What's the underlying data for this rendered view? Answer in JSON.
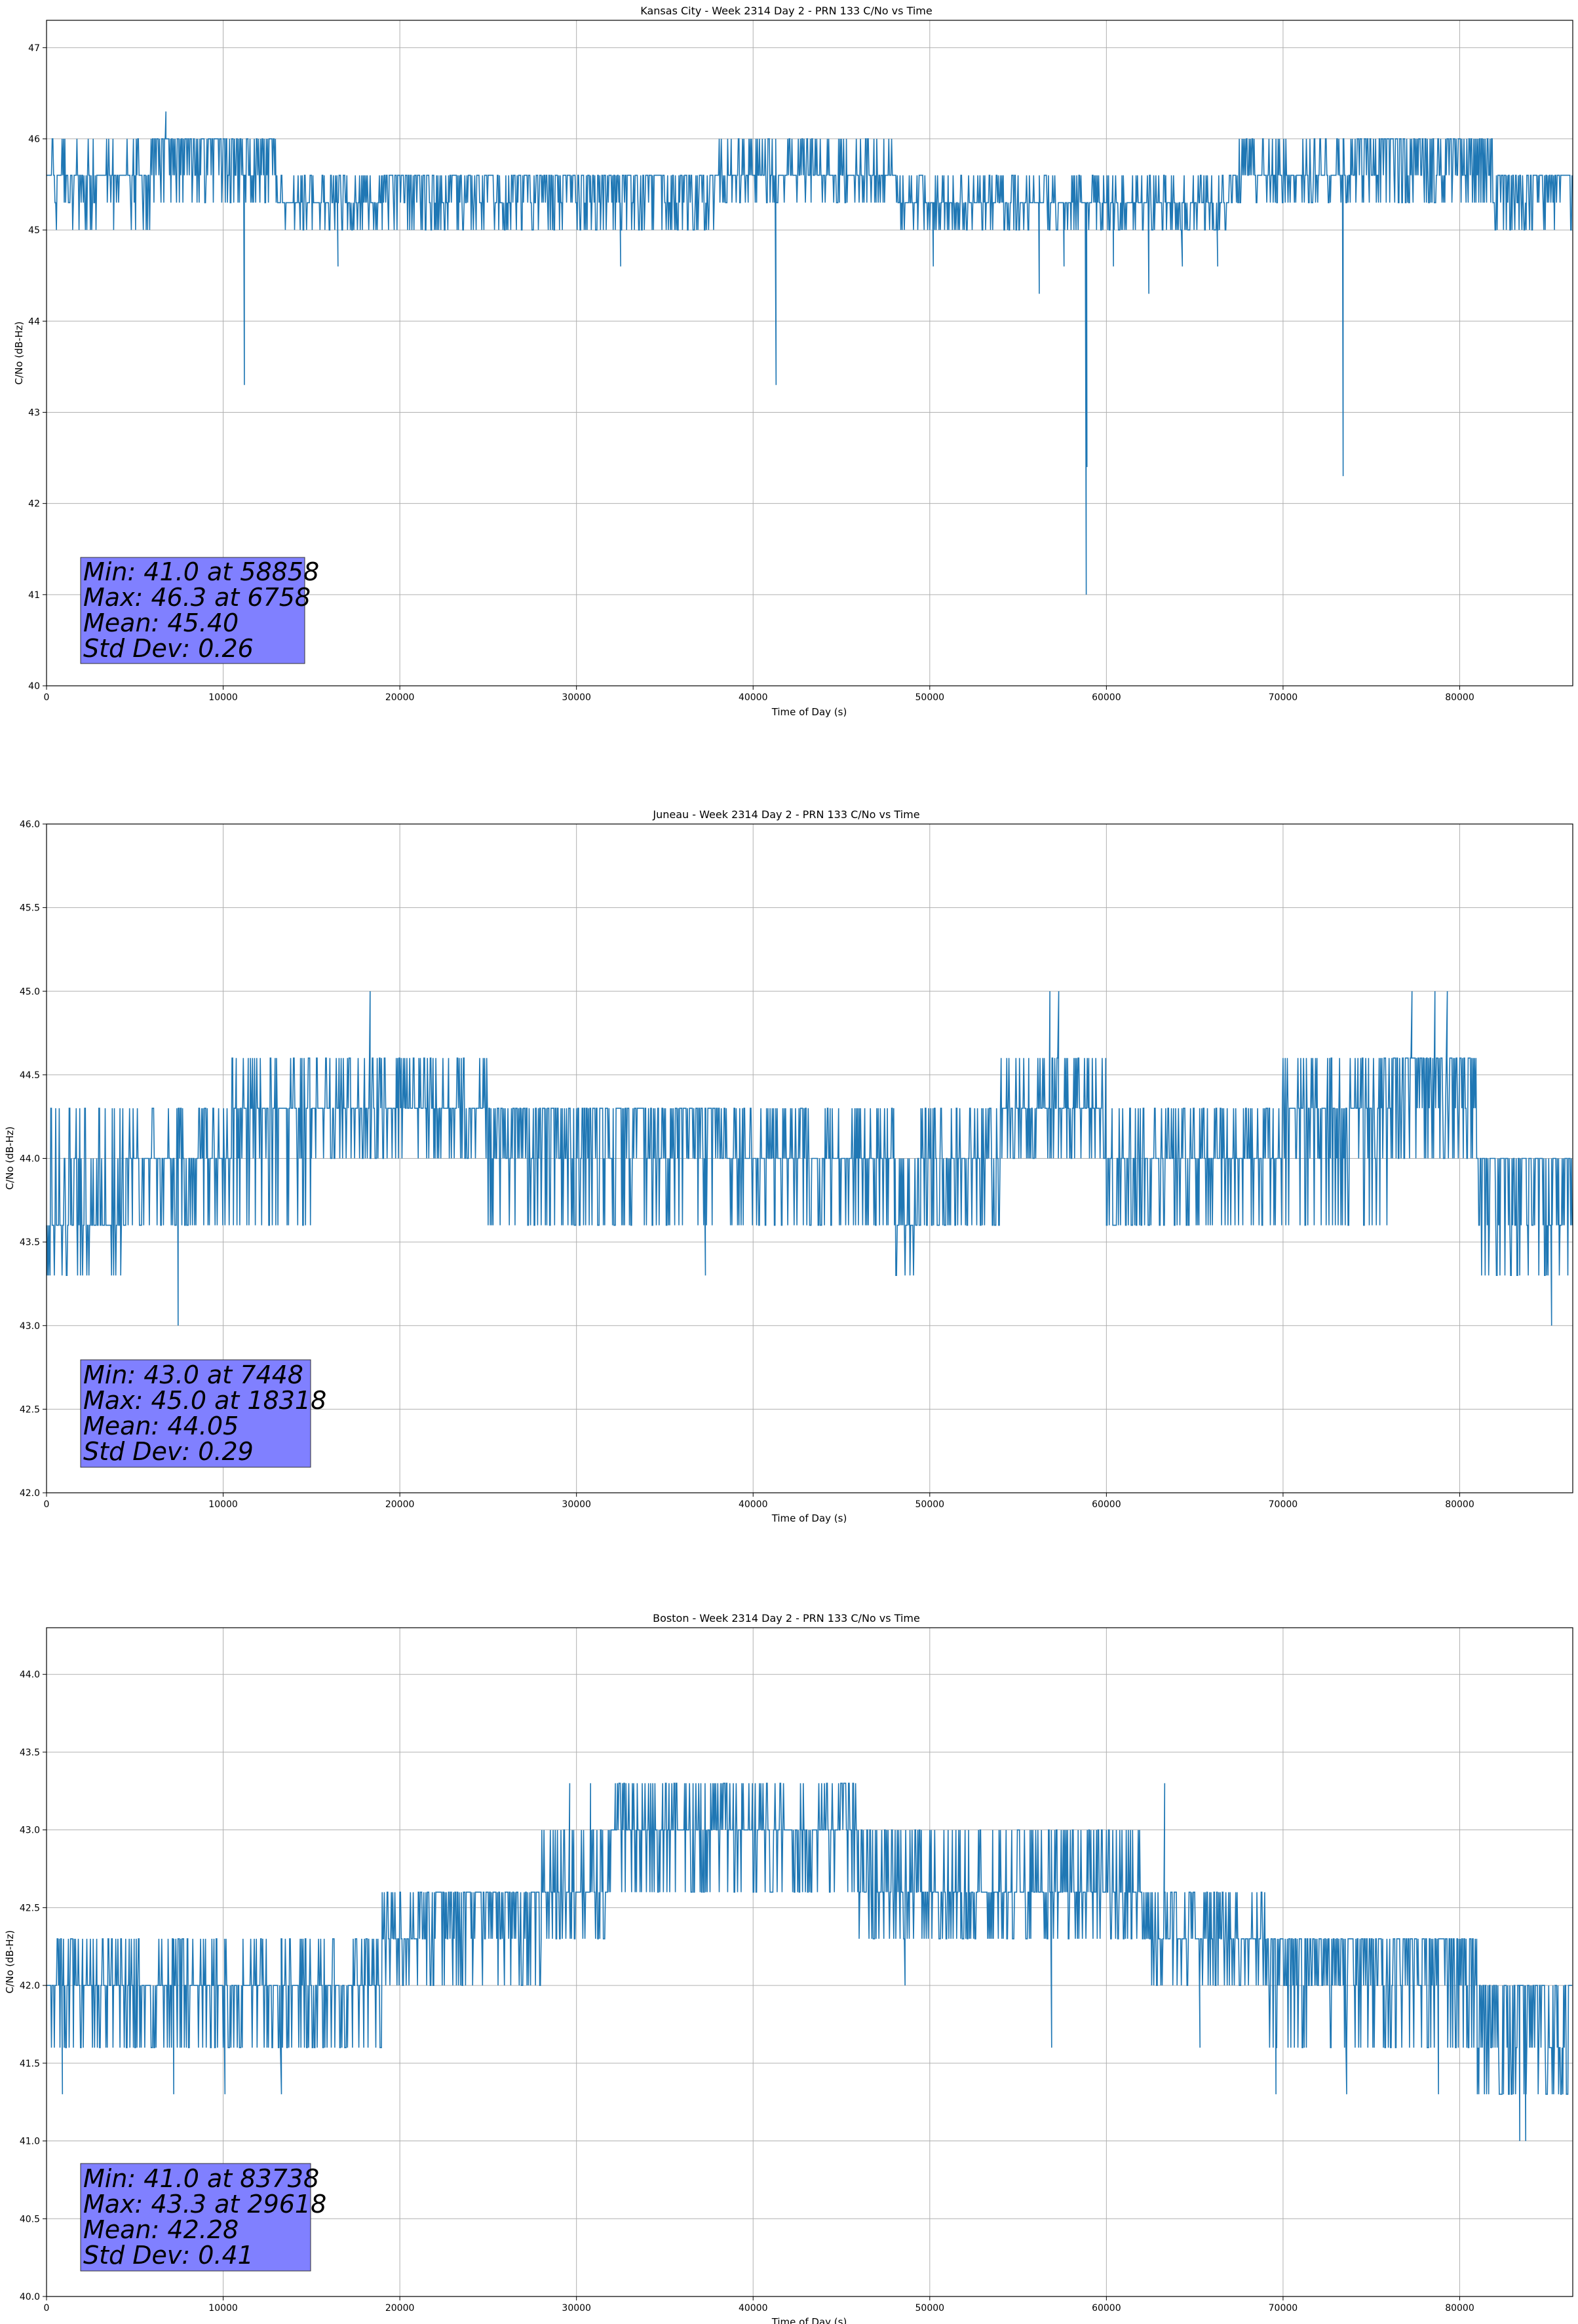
{
  "figure": {
    "background": "#ffffff",
    "line_color": "#1f77b4",
    "grid_color": "#b0b0b0",
    "stats_box_color": "#8080ff"
  },
  "chart_data": [
    {
      "type": "line",
      "title": "Kansas City - Week 2314 Day 2 - PRN 133 C/No vs Time",
      "xlabel": "Time of Day (s)",
      "ylabel": "C/No (dB-Hz)",
      "xlim": [
        0,
        86400
      ],
      "ylim": [
        40,
        47.3
      ],
      "xticks": [
        0,
        10000,
        20000,
        30000,
        40000,
        50000,
        60000,
        70000,
        80000
      ],
      "xtick_labels": [
        "0",
        "10000",
        "20000",
        "30000",
        "40000",
        "50000",
        "60000",
        "70000",
        "80000"
      ],
      "yticks": [
        40,
        41,
        42,
        43,
        44,
        45,
        46,
        47
      ],
      "ytick_labels": [
        "40",
        "41",
        "42",
        "43",
        "44",
        "45",
        "46",
        "47"
      ],
      "grid": true,
      "series": [
        {
          "color": "#1f77b4",
          "segments": [
            {
              "x0": 0,
              "x1": 6000,
              "base": 45.6,
              "alts": [
                45.3,
                46.0,
                45.0
              ]
            },
            {
              "x0": 6000,
              "x1": 13000,
              "base": 46.0,
              "alts": [
                45.6,
                45.3
              ]
            },
            {
              "x0": 13000,
              "x1": 19000,
              "base": 45.3,
              "alts": [
                45.0,
                45.6
              ]
            },
            {
              "x0": 19000,
              "x1": 38000,
              "base": 45.6,
              "alts": [
                45.3,
                45.0
              ]
            },
            {
              "x0": 38000,
              "x1": 48000,
              "base": 45.6,
              "alts": [
                46.0,
                45.3
              ]
            },
            {
              "x0": 48000,
              "x1": 67000,
              "base": 45.3,
              "alts": [
                45.0,
                45.6
              ]
            },
            {
              "x0": 67000,
              "x1": 74000,
              "base": 45.6,
              "alts": [
                45.3,
                46.0
              ]
            },
            {
              "x0": 74000,
              "x1": 82000,
              "base": 46.0,
              "alts": [
                45.6,
                45.3
              ]
            },
            {
              "x0": 82000,
              "x1": 86400,
              "base": 45.6,
              "alts": [
                45.3,
                45.0
              ]
            }
          ],
          "spikes": [
            {
              "x": 6758,
              "y": 46.3
            },
            {
              "x": 11200,
              "y": 43.3
            },
            {
              "x": 16500,
              "y": 44.6
            },
            {
              "x": 32500,
              "y": 44.6
            },
            {
              "x": 41300,
              "y": 43.3
            },
            {
              "x": 50200,
              "y": 44.6
            },
            {
              "x": 56200,
              "y": 44.3
            },
            {
              "x": 57600,
              "y": 44.6
            },
            {
              "x": 58858,
              "y": 41.0
            },
            {
              "x": 58900,
              "y": 42.4
            },
            {
              "x": 60400,
              "y": 44.6
            },
            {
              "x": 62400,
              "y": 44.3
            },
            {
              "x": 64300,
              "y": 44.6
            },
            {
              "x": 66300,
              "y": 44.6
            },
            {
              "x": 73400,
              "y": 42.3
            }
          ]
        }
      ],
      "stats": [
        "Min: 41.0 at 58858",
        "Max: 46.3 at 6758",
        "Mean: 45.40",
        "Std Dev: 0.26"
      ]
    },
    {
      "type": "line",
      "title": "Juneau - Week 2314 Day 2 - PRN 133 C/No vs Time",
      "xlabel": "Time of Day (s)",
      "ylabel": "C/No (dB-Hz)",
      "xlim": [
        0,
        86400
      ],
      "ylim": [
        42,
        46
      ],
      "xticks": [
        0,
        10000,
        20000,
        30000,
        40000,
        50000,
        60000,
        70000,
        80000
      ],
      "xtick_labels": [
        "0",
        "10000",
        "20000",
        "30000",
        "40000",
        "50000",
        "60000",
        "70000",
        "80000"
      ],
      "yticks": [
        42.0,
        42.5,
        43.0,
        43.5,
        44.0,
        44.5,
        45.0,
        45.5,
        46.0
      ],
      "ytick_labels": [
        "42.0",
        "42.5",
        "43.0",
        "43.5",
        "44.0",
        "44.5",
        "45.0",
        "45.5",
        "46.0"
      ],
      "grid": true,
      "series": [
        {
          "color": "#1f77b4",
          "segments": [
            {
              "x0": 0,
              "x1": 4500,
              "base": 43.6,
              "alts": [
                43.3,
                44.0,
                44.3
              ]
            },
            {
              "x0": 4500,
              "x1": 10500,
              "base": 44.0,
              "alts": [
                43.6,
                44.3
              ]
            },
            {
              "x0": 10500,
              "x1": 15000,
              "base": 44.3,
              "alts": [
                44.0,
                44.6,
                43.6
              ]
            },
            {
              "x0": 15000,
              "x1": 25000,
              "base": 44.3,
              "alts": [
                44.6,
                44.0
              ]
            },
            {
              "x0": 25000,
              "x1": 38000,
              "base": 44.3,
              "alts": [
                44.0,
                43.6
              ]
            },
            {
              "x0": 38000,
              "x1": 48000,
              "base": 44.0,
              "alts": [
                44.3,
                43.6
              ]
            },
            {
              "x0": 48000,
              "x1": 49500,
              "base": 43.6,
              "alts": [
                43.3,
                44.0
              ]
            },
            {
              "x0": 49500,
              "x1": 54000,
              "base": 44.0,
              "alts": [
                43.6,
                44.3
              ]
            },
            {
              "x0": 54000,
              "x1": 60000,
              "base": 44.3,
              "alts": [
                44.6,
                44.0
              ]
            },
            {
              "x0": 60000,
              "x1": 70000,
              "base": 44.0,
              "alts": [
                43.6,
                44.3
              ]
            },
            {
              "x0": 70000,
              "x1": 76000,
              "base": 44.3,
              "alts": [
                44.0,
                43.6,
                44.6
              ]
            },
            {
              "x0": 76000,
              "x1": 81000,
              "base": 44.6,
              "alts": [
                44.3,
                44.0
              ]
            },
            {
              "x0": 81000,
              "x1": 86400,
              "base": 44.0,
              "alts": [
                43.6,
                43.3
              ]
            }
          ],
          "spikes": [
            {
              "x": 7448,
              "y": 43.0
            },
            {
              "x": 18318,
              "y": 45.0
            },
            {
              "x": 37300,
              "y": 43.3
            },
            {
              "x": 56800,
              "y": 45.0
            },
            {
              "x": 57300,
              "y": 45.0
            },
            {
              "x": 77300,
              "y": 45.0
            },
            {
              "x": 78600,
              "y": 45.0
            },
            {
              "x": 79300,
              "y": 45.0
            },
            {
              "x": 85200,
              "y": 43.0
            }
          ]
        }
      ],
      "stats": [
        "Min: 43.0 at 7448",
        "Max: 45.0 at 18318",
        "Mean: 44.05",
        "Std Dev: 0.29"
      ]
    },
    {
      "type": "line",
      "title": "Boston - Week 2314 Day 2 - PRN 133 C/No vs Time",
      "xlabel": "Time of Day (s)",
      "ylabel": "C/No (dB-Hz)",
      "xlim": [
        0,
        86400
      ],
      "ylim": [
        40,
        44.3
      ],
      "xticks": [
        0,
        10000,
        20000,
        30000,
        40000,
        50000,
        60000,
        70000,
        80000
      ],
      "xtick_labels": [
        "0",
        "10000",
        "20000",
        "30000",
        "40000",
        "50000",
        "60000",
        "70000",
        "80000"
      ],
      "yticks": [
        40.0,
        40.5,
        41.0,
        41.5,
        42.0,
        42.5,
        43.0,
        43.5,
        44.0
      ],
      "ytick_labels": [
        "40.0",
        "40.5",
        "41.0",
        "41.5",
        "42.0",
        "42.5",
        "43.0",
        "43.5",
        "44.0"
      ],
      "grid": true,
      "series": [
        {
          "color": "#1f77b4",
          "segments": [
            {
              "x0": 0,
              "x1": 19000,
              "base": 42.0,
              "alts": [
                41.6,
                42.3
              ]
            },
            {
              "x0": 19000,
              "x1": 21000,
              "base": 42.3,
              "alts": [
                42.0,
                42.6
              ]
            },
            {
              "x0": 21000,
              "x1": 28000,
              "base": 42.6,
              "alts": [
                42.3,
                42.0
              ]
            },
            {
              "x0": 28000,
              "x1": 32000,
              "base": 42.6,
              "alts": [
                43.0,
                42.3
              ]
            },
            {
              "x0": 32000,
              "x1": 46000,
              "base": 43.0,
              "alts": [
                42.6,
                43.3
              ]
            },
            {
              "x0": 46000,
              "x1": 62000,
              "base": 42.6,
              "alts": [
                42.3,
                43.0
              ]
            },
            {
              "x0": 62000,
              "x1": 69000,
              "base": 42.3,
              "alts": [
                42.6,
                42.0
              ]
            },
            {
              "x0": 69000,
              "x1": 81000,
              "base": 42.3,
              "alts": [
                42.0,
                41.6
              ]
            },
            {
              "x0": 81000,
              "x1": 86400,
              "base": 42.0,
              "alts": [
                41.6,
                41.3
              ]
            }
          ],
          "spikes": [
            {
              "x": 900,
              "y": 41.3
            },
            {
              "x": 7200,
              "y": 41.3
            },
            {
              "x": 10100,
              "y": 41.3
            },
            {
              "x": 13300,
              "y": 41.3
            },
            {
              "x": 29618,
              "y": 43.3
            },
            {
              "x": 30800,
              "y": 43.3
            },
            {
              "x": 32200,
              "y": 43.3
            },
            {
              "x": 48600,
              "y": 42.0
            },
            {
              "x": 56900,
              "y": 41.6
            },
            {
              "x": 63300,
              "y": 43.3
            },
            {
              "x": 65300,
              "y": 41.6
            },
            {
              "x": 69600,
              "y": 41.3
            },
            {
              "x": 73600,
              "y": 41.3
            },
            {
              "x": 78800,
              "y": 41.3
            },
            {
              "x": 83400,
              "y": 41.0
            },
            {
              "x": 83738,
              "y": 41.0
            }
          ]
        }
      ],
      "stats": [
        "Min: 41.0 at 83738",
        "Max: 43.3 at 29618",
        "Mean: 42.28",
        "Std Dev: 0.41"
      ]
    }
  ]
}
